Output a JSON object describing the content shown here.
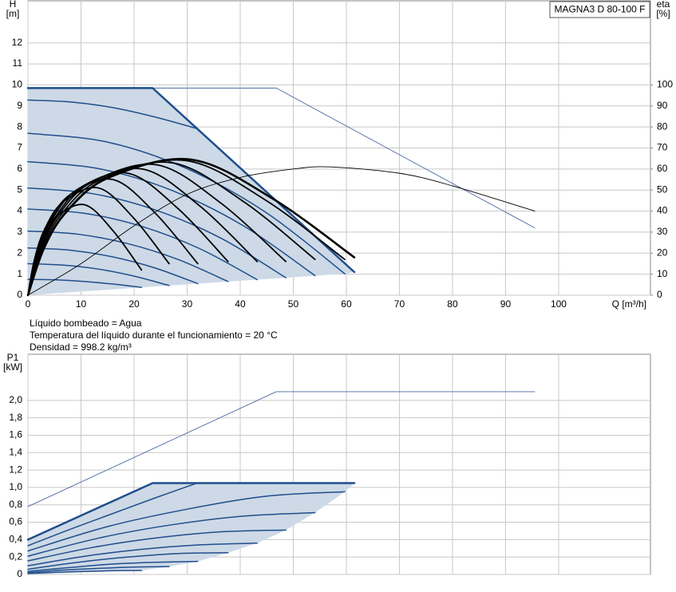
{
  "chart_data": [
    {
      "type": "line",
      "title": "MAGNA3 D 80-100 F",
      "ylabel": "H",
      "yunit": "[m]",
      "y2label": "eta",
      "y2unit": "[%]",
      "xlabel": "Q [m³/h]",
      "annotations": [
        "Líquido bombeado = Agua",
        "Temperatura del líquido durante el funcionamiento = 20 °C",
        "Densidad = 998.2 kg/m³"
      ],
      "xlim": [
        0,
        117.3
      ],
      "xticks": [
        0,
        10,
        20,
        30,
        40,
        50,
        60,
        70,
        80,
        90,
        100
      ],
      "ylim": [
        0,
        14
      ],
      "yticks": [
        0,
        1,
        2,
        3,
        4,
        5,
        6,
        7,
        8,
        9,
        10,
        11,
        12
      ],
      "y2lim": [
        0,
        140
      ],
      "y2ticks": [
        0,
        10,
        20,
        30,
        40,
        50,
        60,
        70,
        80,
        90,
        100
      ],
      "grid": true,
      "area_color": "#cdd9e6",
      "series": [
        {
          "role": "limit",
          "color": "#4a6a9e",
          "width": 0.9,
          "x": [
            0,
            46.8,
            95.5
          ],
          "values": [
            9.85,
            9.85,
            3.2
          ]
        },
        {
          "role": "speed",
          "color": "#1f4e8c",
          "width": 1.5,
          "x": [
            0,
            8,
            16,
            24,
            31.9
          ],
          "values": [
            9.28,
            9.19,
            8.92,
            8.47,
            7.92
          ]
        },
        {
          "role": "speed",
          "color": "#1f4e8c",
          "width": 1.5,
          "x": [
            0,
            15,
            30,
            45,
            59.7
          ],
          "values": [
            7.7,
            7.28,
            6.01,
            3.91,
            1.02
          ]
        },
        {
          "role": "speed",
          "color": "#1f4e8c",
          "width": 1.5,
          "x": [
            0,
            13.5,
            27.05,
            40.6,
            54.1
          ],
          "values": [
            6.35,
            6.01,
            4.99,
            3.3,
            0.93
          ]
        },
        {
          "role": "speed",
          "color": "#1f4e8c",
          "width": 1.5,
          "x": [
            0,
            12.15,
            24.3,
            36.45,
            48.6
          ],
          "values": [
            5.1,
            4.83,
            4.03,
            2.7,
            0.83
          ]
        },
        {
          "role": "speed",
          "color": "#1f4e8c",
          "width": 1.5,
          "x": [
            0,
            10.8,
            21.6,
            32.4,
            43.2
          ],
          "values": [
            4.1,
            3.89,
            3.26,
            2.21,
            0.74
          ]
        },
        {
          "role": "speed",
          "color": "#1f4e8c",
          "width": 1.5,
          "x": [
            0,
            9.43,
            18.85,
            28.28,
            37.7
          ],
          "values": [
            3.05,
            2.9,
            2.45,
            1.7,
            0.65
          ]
        },
        {
          "role": "speed",
          "color": "#1f4e8c",
          "width": 1.5,
          "x": [
            0,
            8,
            16,
            24,
            32
          ],
          "values": [
            2.25,
            2.14,
            1.82,
            1.29,
            0.55
          ]
        },
        {
          "role": "speed",
          "color": "#1f4e8c",
          "width": 1.5,
          "x": [
            0,
            6.65,
            13.3,
            19.95,
            26.6
          ],
          "values": [
            1.5,
            1.43,
            1.24,
            0.91,
            0.46
          ]
        },
        {
          "role": "speed",
          "color": "#1f4e8c",
          "width": 1.5,
          "x": [
            0,
            5.35,
            10.7,
            16.05,
            21.4
          ],
          "values": [
            0.75,
            0.73,
            0.65,
            0.53,
            0.37
          ]
        },
        {
          "role": "max",
          "color": "#1f4e8c",
          "width": 2.5,
          "x": [
            0,
            23.5,
            61.5
          ],
          "values": [
            9.85,
            9.85,
            1.1
          ]
        },
        {
          "role": "eff",
          "axis": "y2",
          "color": "#000000",
          "width": 0.9,
          "x": [
            0,
            10,
            20,
            30,
            40,
            50,
            57,
            70,
            80,
            95.5
          ],
          "values": [
            0,
            15,
            33,
            48,
            56,
            60,
            61,
            58,
            52,
            40
          ]
        },
        {
          "role": "eff",
          "axis": "y2",
          "color": "#000000",
          "width": 1.8,
          "x": [
            0,
            1.07,
            2.57,
            5.35,
            10.7,
            16.05,
            21.4
          ],
          "values": [
            0,
            15.1,
            26.7,
            37.4,
            43,
            30.6,
            12
          ]
        },
        {
          "role": "eff",
          "axis": "y2",
          "color": "#000000",
          "width": 1.8,
          "x": [
            0,
            1.33,
            3.19,
            6.65,
            13.3,
            19.95,
            26.6
          ],
          "values": [
            0,
            17.9,
            31.6,
            44.4,
            51,
            36.6,
            15
          ]
        },
        {
          "role": "eff",
          "axis": "y2",
          "color": "#000000",
          "width": 1.8,
          "x": [
            0,
            1.6,
            3.84,
            8,
            16,
            24,
            32
          ],
          "values": [
            0,
            19.3,
            34.1,
            47.9,
            55,
            39,
            15
          ]
        },
        {
          "role": "eff",
          "axis": "y2",
          "color": "#000000",
          "width": 1.8,
          "x": [
            0,
            1.89,
            4.52,
            9.43,
            18.85,
            28.28,
            37.7
          ],
          "values": [
            0,
            20.3,
            36,
            50.5,
            58,
            41.2,
            16
          ]
        },
        {
          "role": "eff",
          "axis": "y2",
          "color": "#000000",
          "width": 1.8,
          "x": [
            0,
            2.16,
            5.18,
            10.8,
            21.6,
            32.4,
            43.2
          ],
          "values": [
            0,
            21,
            37.2,
            52.2,
            60,
            42.4,
            16
          ]
        },
        {
          "role": "eff",
          "axis": "y2",
          "color": "#000000",
          "width": 1.8,
          "x": [
            0,
            2.43,
            5.83,
            12.15,
            24.3,
            36.45,
            48.6
          ],
          "values": [
            0,
            21.7,
            38.4,
            53.9,
            62,
            43.6,
            16
          ]
        },
        {
          "role": "eff",
          "axis": "y2",
          "color": "#000000",
          "width": 1.8,
          "x": [
            0,
            2.71,
            6.49,
            13.53,
            27.05,
            40.58,
            54.1
          ],
          "values": [
            0,
            22.1,
            39.1,
            54.8,
            63,
            44.6,
            17
          ]
        },
        {
          "role": "eff",
          "axis": "y2",
          "color": "#000000",
          "width": 1.8,
          "x": [
            0,
            2.99,
            7.16,
            14.93,
            29.85,
            44.78,
            59.7
          ],
          "values": [
            0,
            22.4,
            39.7,
            55.7,
            64,
            45.2,
            17
          ]
        },
        {
          "role": "eff",
          "axis": "y2",
          "color": "#000000",
          "width": 2.6,
          "x": [
            0,
            3.08,
            7.38,
            15.38,
            30.75,
            46.13,
            61.5
          ],
          "values": [
            0,
            22.6,
            40,
            56.1,
            64.5,
            45.9,
            18
          ]
        }
      ]
    },
    {
      "type": "line",
      "ylabel": "P1",
      "yunit": "[kW]",
      "xtick_labels": false,
      "xlim": [
        0,
        117.3
      ],
      "xticks": [
        0,
        10,
        20,
        30,
        40,
        50,
        60,
        70,
        80,
        90,
        100
      ],
      "ylim": [
        0,
        2.53
      ],
      "yticks": [
        0,
        {
          "value": 0.2,
          "label": "0,2"
        },
        {
          "value": 0.4,
          "label": "0,4"
        },
        {
          "value": 0.6,
          "label": "0,6"
        },
        {
          "value": 0.8,
          "label": "0,8"
        },
        {
          "value": 1.0,
          "label": "1,0"
        },
        {
          "value": 1.2,
          "label": "1,2"
        },
        {
          "value": 1.4,
          "label": "1,4"
        },
        {
          "value": 1.6,
          "label": "1,6"
        },
        {
          "value": 1.8,
          "label": "1,8"
        },
        {
          "value": 2.0,
          "label": "2,0"
        }
      ],
      "grid": true,
      "area_color": "#cdd9e6",
      "series": [
        {
          "role": "limit",
          "color": "#4a6a9e",
          "width": 0.9,
          "x": [
            0,
            46.8,
            95.5
          ],
          "values": [
            0.78,
            2.1,
            2.1
          ]
        },
        {
          "role": "speed",
          "color": "#1f4e8c",
          "width": 1.5,
          "x": [
            0,
            8,
            16,
            24,
            31.9
          ],
          "values": [
            0.33,
            0.52,
            0.7,
            0.88,
            1.05
          ]
        },
        {
          "role": "speed",
          "color": "#1f4e8c",
          "width": 1.5,
          "x": [
            0,
            15,
            30,
            45,
            59.7
          ],
          "values": [
            0.27,
            0.55,
            0.75,
            0.9,
            0.95
          ]
        },
        {
          "role": "speed",
          "color": "#1f4e8c",
          "width": 1.5,
          "x": [
            0,
            13.5,
            27.05,
            40.6,
            54.1
          ],
          "values": [
            0.21,
            0.42,
            0.57,
            0.67,
            0.71
          ]
        },
        {
          "role": "speed",
          "color": "#1f4e8c",
          "width": 1.5,
          "x": [
            0,
            12.15,
            24.3,
            36.45,
            48.6
          ],
          "values": [
            0.156,
            0.31,
            0.42,
            0.49,
            0.51
          ]
        },
        {
          "role": "speed",
          "color": "#1f4e8c",
          "width": 1.5,
          "x": [
            0,
            10.8,
            21.6,
            32.4,
            43.2
          ],
          "values": [
            0.1,
            0.21,
            0.29,
            0.34,
            0.36
          ]
        },
        {
          "role": "speed",
          "color": "#1f4e8c",
          "width": 1.5,
          "x": [
            0,
            9.43,
            18.85,
            28.28,
            37.7
          ],
          "values": [
            0.06,
            0.14,
            0.2,
            0.24,
            0.25
          ]
        },
        {
          "role": "speed",
          "color": "#1f4e8c",
          "width": 1.5,
          "x": [
            0,
            8,
            16,
            24,
            32
          ],
          "values": [
            0.035,
            0.08,
            0.12,
            0.14,
            0.15
          ]
        },
        {
          "role": "speed",
          "color": "#1f4e8c",
          "width": 1.5,
          "x": [
            0,
            6.65,
            13.3,
            19.95,
            26.6
          ],
          "values": [
            0.02,
            0.05,
            0.07,
            0.085,
            0.09
          ]
        },
        {
          "role": "speed",
          "color": "#1f4e8c",
          "width": 1.5,
          "x": [
            0,
            5.35,
            10.7,
            16.05,
            21.4
          ],
          "values": [
            0.01,
            0.025,
            0.035,
            0.043,
            0.046
          ]
        },
        {
          "role": "max",
          "color": "#1f4e8c",
          "width": 2.5,
          "x": [
            0,
            23.5,
            61.5
          ],
          "values": [
            0.4,
            1.05,
            1.05
          ]
        }
      ]
    }
  ]
}
